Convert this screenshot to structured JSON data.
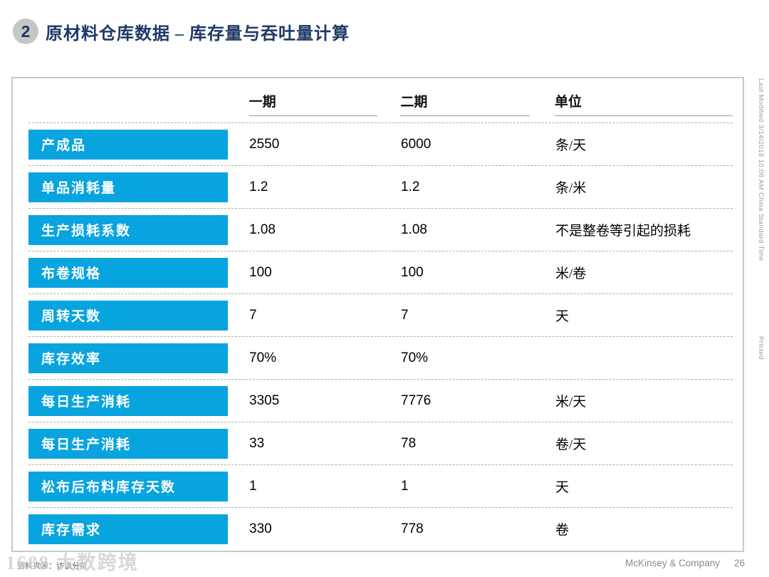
{
  "slide": {
    "badge": "2",
    "title": "原材料仓库数据 – 库存量与吞吐量计算"
  },
  "table": {
    "headers": {
      "phase1": "一期",
      "phase2": "二期",
      "unit": "单位"
    },
    "rows": [
      {
        "label": "产成品",
        "phase1": "2550",
        "phase2": "6000",
        "unit": "条/天"
      },
      {
        "label": "单品消耗量",
        "phase1": "1.2",
        "phase2": "1.2",
        "unit": "条/米"
      },
      {
        "label": "生产损耗系数",
        "phase1": "1.08",
        "phase2": "1.08",
        "unit": "不是整卷等引起的损耗"
      },
      {
        "label": "布卷规格",
        "phase1": "100",
        "phase2": "100",
        "unit": "米/卷"
      },
      {
        "label": "周转天数",
        "phase1": "7",
        "phase2": "7",
        "unit": "天"
      },
      {
        "label": "库存效率",
        "phase1": "70%",
        "phase2": "70%",
        "unit": ""
      },
      {
        "label": "每日生产消耗",
        "phase1": "3305",
        "phase2": "7776",
        "unit": "米/天"
      },
      {
        "label": "每日生产消耗",
        "phase1": "33",
        "phase2": "78",
        "unit": "卷/天"
      },
      {
        "label": "松布后布料库存天数",
        "phase1": "1",
        "phase2": "1",
        "unit": "天"
      },
      {
        "label": "库存需求",
        "phase1": "330",
        "phase2": "778",
        "unit": "卷"
      }
    ]
  },
  "sidebar": {
    "last_modified": "Last Modified 3/14/2018 10:08 AM China Standard Time",
    "printed": "Printed"
  },
  "footer": {
    "source": "资料来源：访谈分析",
    "watermark": "1688 大数跨境",
    "company": "McKinsey & Company",
    "page": "26"
  },
  "colors": {
    "accent_blue": "#08a4df",
    "title_navy": "#1f3864"
  }
}
